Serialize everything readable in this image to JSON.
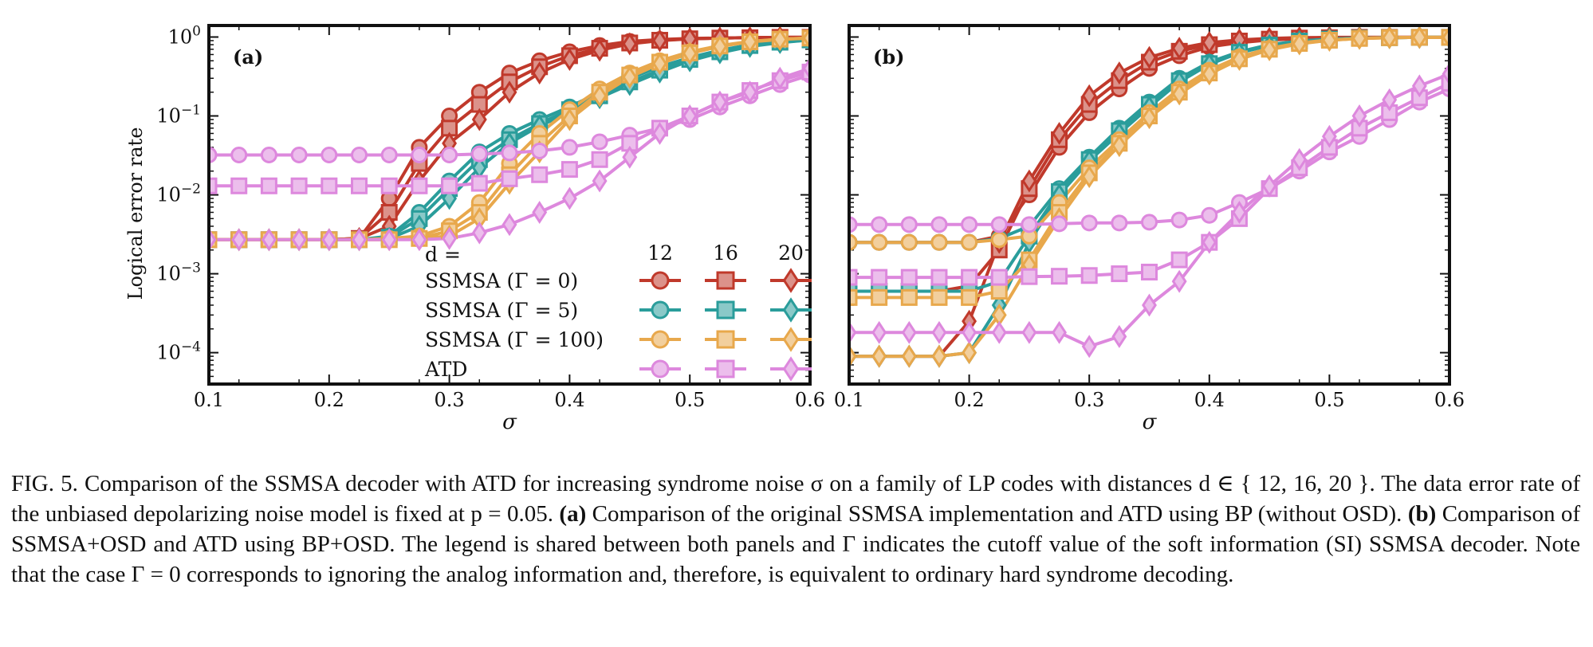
{
  "figure": {
    "ylabel": "Logical error rate",
    "legend": {
      "header_label": "d =",
      "distances": [
        "12",
        "16",
        "20"
      ],
      "rows": [
        "SSMSA (Γ = 0)",
        "SSMSA (Γ = 5)",
        "SSMSA (Γ = 100)",
        "ATD"
      ]
    }
  },
  "chart_data": [
    {
      "type": "line",
      "panel_label": "(a)",
      "xlabel": "σ",
      "ylabel": "Logical error rate",
      "yscale": "log",
      "xlim": [
        0.1,
        0.6
      ],
      "ylim": [
        4e-05,
        1.4
      ],
      "xticks": [
        "0.1",
        "0.2",
        "0.3",
        "0.4",
        "0.5",
        "0.6"
      ],
      "yticks": [
        "10^0",
        "10^-1",
        "10^-2",
        "10^-3",
        "10^-4"
      ],
      "x": [
        0.1,
        0.125,
        0.15,
        0.175,
        0.2,
        0.225,
        0.25,
        0.275,
        0.3,
        0.325,
        0.35,
        0.375,
        0.4,
        0.425,
        0.45,
        0.475,
        0.5,
        0.525,
        0.55,
        0.575,
        0.6
      ],
      "series": [
        {
          "name": "SSMSA (Γ = 0), d=12",
          "color": "#c0392b",
          "marker": "circle",
          "values": [
            0.0027,
            0.0027,
            0.0027,
            0.0027,
            0.0027,
            0.0028,
            0.009,
            0.04,
            0.1,
            0.2,
            0.35,
            0.5,
            0.65,
            0.78,
            0.88,
            0.93,
            0.96,
            0.97,
            0.98,
            0.99,
            0.99
          ]
        },
        {
          "name": "SSMSA (Γ = 0), d=16",
          "color": "#c0392b",
          "marker": "square",
          "values": [
            0.0027,
            0.0027,
            0.0027,
            0.0027,
            0.0027,
            0.0028,
            0.006,
            0.025,
            0.07,
            0.14,
            0.27,
            0.42,
            0.58,
            0.72,
            0.84,
            0.91,
            0.95,
            0.97,
            0.98,
            0.99,
            0.99
          ]
        },
        {
          "name": "SSMSA (Γ = 0), d=20",
          "color": "#c0392b",
          "marker": "diamond",
          "values": [
            0.0027,
            0.0027,
            0.0027,
            0.0027,
            0.0027,
            0.0028,
            0.004,
            0.015,
            0.045,
            0.09,
            0.2,
            0.35,
            0.52,
            0.68,
            0.82,
            0.9,
            0.95,
            0.97,
            0.98,
            0.99,
            0.99
          ]
        },
        {
          "name": "SSMSA (Γ = 5), d=12",
          "color": "#2a9d9b",
          "marker": "circle",
          "values": [
            0.0027,
            0.0027,
            0.0027,
            0.0027,
            0.0027,
            0.0027,
            0.003,
            0.006,
            0.015,
            0.035,
            0.06,
            0.09,
            0.13,
            0.2,
            0.3,
            0.42,
            0.55,
            0.68,
            0.8,
            0.88,
            0.92
          ]
        },
        {
          "name": "SSMSA (Γ = 5), d=16",
          "color": "#2a9d9b",
          "marker": "square",
          "values": [
            0.0027,
            0.0027,
            0.0027,
            0.0027,
            0.0027,
            0.0027,
            0.0029,
            0.005,
            0.012,
            0.028,
            0.05,
            0.08,
            0.12,
            0.18,
            0.27,
            0.38,
            0.52,
            0.65,
            0.78,
            0.86,
            0.92
          ]
        },
        {
          "name": "SSMSA (Γ = 5), d=20",
          "color": "#2a9d9b",
          "marker": "diamond",
          "values": [
            0.0027,
            0.0027,
            0.0027,
            0.0027,
            0.0027,
            0.0027,
            0.0028,
            0.004,
            0.009,
            0.022,
            0.045,
            0.075,
            0.11,
            0.17,
            0.25,
            0.36,
            0.5,
            0.63,
            0.76,
            0.85,
            0.92
          ]
        },
        {
          "name": "SSMSA (Γ = 100), d=12",
          "color": "#e8a84c",
          "marker": "circle",
          "values": [
            0.0027,
            0.0027,
            0.0027,
            0.0027,
            0.0027,
            0.0027,
            0.0028,
            0.003,
            0.004,
            0.008,
            0.025,
            0.06,
            0.12,
            0.22,
            0.35,
            0.5,
            0.65,
            0.78,
            0.88,
            0.94,
            0.97
          ]
        },
        {
          "name": "SSMSA (Γ = 100), d=16",
          "color": "#e8a84c",
          "marker": "square",
          "values": [
            0.0027,
            0.0027,
            0.0027,
            0.0027,
            0.0027,
            0.0027,
            0.0027,
            0.0028,
            0.0035,
            0.006,
            0.018,
            0.045,
            0.1,
            0.2,
            0.33,
            0.48,
            0.63,
            0.77,
            0.87,
            0.94,
            0.97
          ]
        },
        {
          "name": "SSMSA (Γ = 100), d=20",
          "color": "#e8a84c",
          "marker": "diamond",
          "values": [
            0.0027,
            0.0027,
            0.0027,
            0.0027,
            0.0027,
            0.0027,
            0.0027,
            0.0028,
            0.003,
            0.005,
            0.014,
            0.035,
            0.09,
            0.18,
            0.31,
            0.46,
            0.62,
            0.76,
            0.87,
            0.93,
            0.97
          ]
        },
        {
          "name": "ATD, d=12",
          "color": "#dd88dd",
          "marker": "circle",
          "values": [
            0.032,
            0.032,
            0.032,
            0.032,
            0.032,
            0.032,
            0.032,
            0.032,
            0.032,
            0.033,
            0.034,
            0.036,
            0.04,
            0.047,
            0.057,
            0.07,
            0.09,
            0.13,
            0.18,
            0.25,
            0.33
          ]
        },
        {
          "name": "ATD, d=16",
          "color": "#dd88dd",
          "marker": "square",
          "values": [
            0.013,
            0.013,
            0.013,
            0.013,
            0.013,
            0.013,
            0.013,
            0.013,
            0.013,
            0.014,
            0.016,
            0.018,
            0.021,
            0.028,
            0.045,
            0.07,
            0.1,
            0.15,
            0.21,
            0.28,
            0.36
          ]
        },
        {
          "name": "ATD, d=20",
          "color": "#dd88dd",
          "marker": "diamond",
          "values": [
            0.0027,
            0.0027,
            0.0027,
            0.0027,
            0.0027,
            0.0027,
            0.0027,
            0.0027,
            0.0028,
            0.0033,
            0.0042,
            0.006,
            0.009,
            0.015,
            0.03,
            0.06,
            0.1,
            0.15,
            0.2,
            0.3,
            0.4
          ]
        }
      ]
    },
    {
      "type": "line",
      "panel_label": "(b)",
      "xlabel": "σ",
      "ylabel": "Logical error rate",
      "yscale": "log",
      "xlim": [
        0.1,
        0.6
      ],
      "ylim": [
        4e-05,
        1.4
      ],
      "xticks": [
        "0.1",
        "0.2",
        "0.3",
        "0.4",
        "0.5",
        "0.6"
      ],
      "yticks": [
        "10^0",
        "10^-1",
        "10^-2",
        "10^-3",
        "10^-4"
      ],
      "x": [
        0.1,
        0.125,
        0.15,
        0.175,
        0.2,
        0.225,
        0.25,
        0.275,
        0.3,
        0.325,
        0.35,
        0.375,
        0.4,
        0.425,
        0.45,
        0.475,
        0.5,
        0.525,
        0.55,
        0.575,
        0.6
      ],
      "series": [
        {
          "name": "SSMSA (Γ = 0), d=12",
          "color": "#c0392b",
          "marker": "circle",
          "values": [
            0.0025,
            0.0025,
            0.0025,
            0.0025,
            0.0025,
            0.003,
            0.01,
            0.04,
            0.11,
            0.22,
            0.4,
            0.58,
            0.75,
            0.85,
            0.92,
            0.95,
            0.97,
            0.98,
            0.99,
            0.99,
            0.99
          ]
        },
        {
          "name": "SSMSA (Γ = 0), d=16",
          "color": "#c0392b",
          "marker": "square",
          "values": [
            0.0006,
            0.0006,
            0.0006,
            0.0006,
            0.0007,
            0.002,
            0.012,
            0.05,
            0.14,
            0.28,
            0.48,
            0.66,
            0.8,
            0.89,
            0.94,
            0.97,
            0.98,
            0.99,
            0.99,
            0.99,
            0.99
          ]
        },
        {
          "name": "SSMSA (Γ = 0), d=20",
          "color": "#c0392b",
          "marker": "diamond",
          "values": [
            9e-05,
            9e-05,
            9e-05,
            9e-05,
            0.00025,
            0.0025,
            0.015,
            0.06,
            0.18,
            0.35,
            0.55,
            0.72,
            0.85,
            0.92,
            0.96,
            0.98,
            0.99,
            0.99,
            0.99,
            0.99,
            0.99
          ]
        },
        {
          "name": "SSMSA (Γ = 5), d=12",
          "color": "#2a9d9b",
          "marker": "circle",
          "values": [
            0.0025,
            0.0025,
            0.0025,
            0.0025,
            0.0025,
            0.0028,
            0.004,
            0.012,
            0.03,
            0.07,
            0.15,
            0.3,
            0.48,
            0.65,
            0.8,
            0.89,
            0.94,
            0.97,
            0.98,
            0.99,
            0.99
          ]
        },
        {
          "name": "SSMSA (Γ = 5), d=16",
          "color": "#2a9d9b",
          "marker": "square",
          "values": [
            0.0006,
            0.0006,
            0.0006,
            0.0006,
            0.0006,
            0.0008,
            0.003,
            0.011,
            0.028,
            0.065,
            0.14,
            0.28,
            0.46,
            0.64,
            0.79,
            0.89,
            0.94,
            0.97,
            0.98,
            0.99,
            0.99
          ]
        },
        {
          "name": "SSMSA (Γ = 5), d=20",
          "color": "#2a9d9b",
          "marker": "diamond",
          "values": [
            9e-05,
            9e-05,
            9e-05,
            9e-05,
            0.0001,
            0.0004,
            0.0025,
            0.01,
            0.027,
            0.06,
            0.13,
            0.27,
            0.45,
            0.63,
            0.78,
            0.88,
            0.94,
            0.97,
            0.98,
            0.99,
            0.99
          ]
        },
        {
          "name": "SSMSA (Γ = 100), d=12",
          "color": "#e8a84c",
          "marker": "circle",
          "values": [
            0.0025,
            0.0025,
            0.0025,
            0.0025,
            0.0025,
            0.0027,
            0.003,
            0.008,
            0.022,
            0.05,
            0.11,
            0.22,
            0.38,
            0.56,
            0.72,
            0.84,
            0.92,
            0.96,
            0.98,
            0.99,
            0.99
          ]
        },
        {
          "name": "SSMSA (Γ = 100), d=16",
          "color": "#e8a84c",
          "marker": "square",
          "values": [
            0.0005,
            0.0005,
            0.0005,
            0.0005,
            0.0005,
            0.0006,
            0.0015,
            0.006,
            0.019,
            0.045,
            0.1,
            0.2,
            0.35,
            0.53,
            0.7,
            0.83,
            0.91,
            0.96,
            0.98,
            0.99,
            0.99
          ]
        },
        {
          "name": "SSMSA (Γ = 100), d=20",
          "color": "#e8a84c",
          "marker": "diamond",
          "values": [
            9e-05,
            9e-05,
            9e-05,
            9e-05,
            0.0001,
            0.0003,
            0.0013,
            0.005,
            0.017,
            0.042,
            0.095,
            0.19,
            0.34,
            0.52,
            0.69,
            0.82,
            0.91,
            0.96,
            0.98,
            0.99,
            0.99
          ]
        },
        {
          "name": "ATD, d=12",
          "color": "#dd88dd",
          "marker": "circle",
          "values": [
            0.0042,
            0.0042,
            0.0042,
            0.0042,
            0.0042,
            0.0042,
            0.0042,
            0.0043,
            0.0044,
            0.0044,
            0.0045,
            0.0048,
            0.0055,
            0.008,
            0.012,
            0.02,
            0.035,
            0.055,
            0.09,
            0.15,
            0.22
          ]
        },
        {
          "name": "ATD, d=16",
          "color": "#dd88dd",
          "marker": "square",
          "values": [
            0.0009,
            0.0009,
            0.0009,
            0.0009,
            0.0009,
            0.0009,
            0.00092,
            0.00093,
            0.00095,
            0.001,
            0.00105,
            0.0015,
            0.0025,
            0.005,
            0.012,
            0.022,
            0.04,
            0.07,
            0.11,
            0.17,
            0.26
          ]
        },
        {
          "name": "ATD, d=20",
          "color": "#dd88dd",
          "marker": "diamond",
          "values": [
            0.00018,
            0.00018,
            0.00018,
            0.00018,
            0.00018,
            0.00018,
            0.00018,
            0.00018,
            0.00012,
            0.00016,
            0.0004,
            0.0008,
            0.0025,
            0.006,
            0.013,
            0.028,
            0.055,
            0.1,
            0.16,
            0.24,
            0.34
          ]
        }
      ]
    }
  ],
  "caption": {
    "fig_label": "FIG. 5.",
    "p1": "Comparison of the SSMSA decoder with ATD for increasing syndrome noise σ on a family of LP codes with distances d ∈ { 12, 16, 20 }. The data error rate of the unbiased depolarizing noise model is fixed at p = 0.05.",
    "a_label": "(a)",
    "p2": "Comparison of the original SSMSA implementation and ATD using BP (without OSD).",
    "b_label": "(b)",
    "p3": "Comparison of SSMSA+OSD and ATD using BP+OSD. The legend is shared between both panels and Γ indicates the cutoff value of the soft information (SI) SSMSA decoder. Note that the case Γ = 0 corresponds to ignoring the analog information and, therefore, is equivalent to ordinary hard syndrome decoding."
  }
}
